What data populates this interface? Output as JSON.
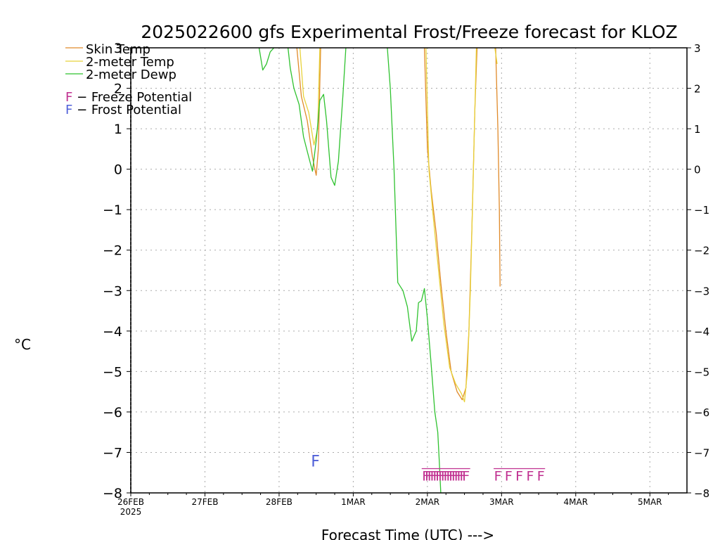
{
  "chart_data": {
    "type": "line",
    "title": "2025022600 gfs Experimental Frost/Freeze forecast for KLOZ",
    "xlabel": "Forecast Time (UTC) --->",
    "ylabel": "°C",
    "ylim": [
      -8,
      3
    ],
    "xlim": [
      0,
      7.5
    ],
    "grid": true,
    "legend_position": "top-left",
    "yticks": [
      -8,
      -7,
      -6,
      -5,
      -4,
      -3,
      -2,
      -1,
      0,
      1,
      2,
      3
    ],
    "yticks_display": [
      "−8",
      "−7",
      "−6",
      "−5",
      "−4",
      "−3",
      "−2",
      "−1",
      "0",
      "1",
      "2",
      "3"
    ],
    "xticks": [
      {
        "x": 0,
        "label": "26FEB",
        "sublabel": "2025"
      },
      {
        "x": 1,
        "label": "27FEB"
      },
      {
        "x": 2,
        "label": "28FEB"
      },
      {
        "x": 3,
        "label": "1MAR"
      },
      {
        "x": 4,
        "label": "2MAR"
      },
      {
        "x": 5,
        "label": "3MAR"
      },
      {
        "x": 6,
        "label": "4MAR"
      },
      {
        "x": 7,
        "label": "5MAR"
      }
    ],
    "x_units": "days since 26FEB 00Z",
    "series": [
      {
        "name": "Skin Temp",
        "color": "#e08a2a",
        "segments": [
          [
            [
              2.24,
              3.0
            ],
            [
              2.3,
              1.8
            ],
            [
              2.38,
              1.2
            ],
            [
              2.45,
              0.3
            ],
            [
              2.5,
              -0.15
            ],
            [
              2.53,
              0.5
            ],
            [
              2.56,
              3.0
            ]
          ],
          [
            [
              3.96,
              3.0
            ],
            [
              4.0,
              0.5
            ],
            [
              4.05,
              -0.5
            ],
            [
              4.12,
              -1.6
            ],
            [
              4.18,
              -2.8
            ],
            [
              4.25,
              -4.0
            ],
            [
              4.32,
              -5.0
            ],
            [
              4.4,
              -5.5
            ],
            [
              4.47,
              -5.7
            ],
            [
              4.52,
              -5.4
            ],
            [
              4.56,
              -4.0
            ],
            [
              4.6,
              -1.5
            ],
            [
              4.64,
              1.5
            ],
            [
              4.67,
              3.0
            ]
          ],
          [
            [
              4.92,
              3.0
            ],
            [
              4.95,
              1.0
            ],
            [
              4.97,
              -1.0
            ],
            [
              4.98,
              -2.9
            ]
          ]
        ]
      },
      {
        "name": "2-meter Temp",
        "color": "#e8d23a",
        "segments": [
          [
            [
              2.28,
              3.0
            ],
            [
              2.33,
              1.8
            ],
            [
              2.4,
              1.4
            ],
            [
              2.47,
              0.6
            ],
            [
              2.52,
              1.0
            ],
            [
              2.55,
              3.0
            ]
          ],
          [
            [
              3.98,
              3.0
            ],
            [
              4.02,
              0.0
            ],
            [
              4.08,
              -1.2
            ],
            [
              4.15,
              -2.5
            ],
            [
              4.22,
              -3.8
            ],
            [
              4.3,
              -4.9
            ],
            [
              4.38,
              -5.3
            ],
            [
              4.46,
              -5.55
            ],
            [
              4.5,
              -5.75
            ],
            [
              4.54,
              -5.0
            ],
            [
              4.58,
              -3.0
            ],
            [
              4.62,
              0.0
            ],
            [
              4.66,
              3.0
            ]
          ],
          [
            [
              4.91,
              3.0
            ],
            [
              4.94,
              2.6
            ]
          ]
        ]
      },
      {
        "name": "2-meter Dewp",
        "color": "#2fc22f",
        "segments": [
          [
            [
              1.73,
              3.0
            ],
            [
              1.78,
              2.45
            ],
            [
              1.83,
              2.6
            ],
            [
              1.88,
              2.9
            ],
            [
              1.93,
              3.0
            ]
          ],
          [
            [
              2.12,
              3.0
            ],
            [
              2.15,
              2.5
            ],
            [
              2.2,
              2.0
            ],
            [
              2.27,
              1.6
            ],
            [
              2.33,
              0.8
            ],
            [
              2.4,
              0.3
            ],
            [
              2.45,
              -0.05
            ],
            [
              2.5,
              0.7
            ],
            [
              2.55,
              1.7
            ],
            [
              2.6,
              1.85
            ],
            [
              2.64,
              1.2
            ],
            [
              2.7,
              -0.2
            ],
            [
              2.75,
              -0.4
            ],
            [
              2.8,
              0.2
            ],
            [
              2.86,
              1.8
            ],
            [
              2.9,
              3.0
            ]
          ],
          [
            [
              3.46,
              3.0
            ],
            [
              3.5,
              2.0
            ],
            [
              3.55,
              0.0
            ],
            [
              3.6,
              -2.8
            ],
            [
              3.67,
              -3.0
            ],
            [
              3.73,
              -3.4
            ],
            [
              3.79,
              -4.25
            ],
            [
              3.85,
              -4.0
            ],
            [
              3.88,
              -3.3
            ],
            [
              3.92,
              -3.25
            ],
            [
              3.96,
              -2.95
            ],
            [
              4.0,
              -3.7
            ],
            [
              4.05,
              -4.8
            ],
            [
              4.1,
              -6.0
            ],
            [
              4.14,
              -6.5
            ],
            [
              4.16,
              -7.2
            ],
            [
              4.18,
              -8.0
            ]
          ]
        ]
      }
    ],
    "annotations": {
      "legend_freeze": {
        "marker": "F",
        "text": " − Freeze Potential",
        "color": "#c03090"
      },
      "legend_frost": {
        "marker": "F",
        "text": " − Frost Potential",
        "color": "#5060d8"
      },
      "frost_marks": [
        {
          "x": 2.49,
          "text": "F"
        }
      ],
      "freeze_marks_group1": {
        "x_start": 3.98,
        "x_end": 4.52,
        "count": 16,
        "text": "F"
      },
      "freeze_marks_group2": {
        "x_start": 4.95,
        "x_end": 5.53,
        "count": 5,
        "text": "F"
      }
    }
  }
}
